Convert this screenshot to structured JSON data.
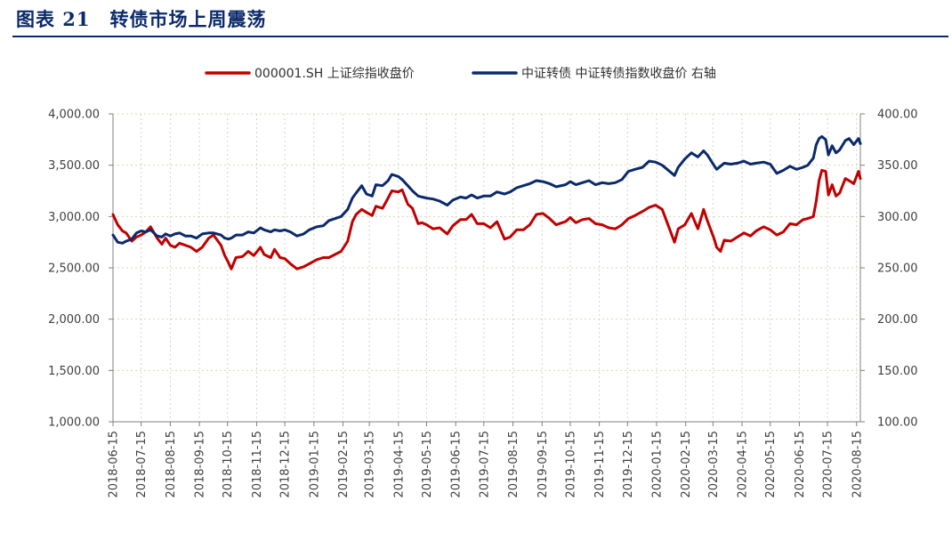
{
  "figure": {
    "label": "图表 21",
    "title": "转债市场上周震荡"
  },
  "colors": {
    "left_series": "#c00000",
    "right_series": "#0b2a6b",
    "title": "#0b2a6b",
    "grid": "#d9d4bf"
  },
  "chart_data": {
    "type": "line",
    "title": "转债市场上周震荡",
    "x_type": "date",
    "x_range": [
      "2018-06-15",
      "2020-08-19"
    ],
    "x_ticks": [
      "2018-06-15",
      "2018-07-15",
      "2018-08-15",
      "2018-09-15",
      "2018-10-15",
      "2018-11-15",
      "2018-12-15",
      "2019-01-15",
      "2019-02-15",
      "2019-03-15",
      "2019-04-15",
      "2019-05-15",
      "2019-06-15",
      "2019-07-15",
      "2019-08-15",
      "2019-09-15",
      "2019-10-15",
      "2019-11-15",
      "2019-12-15",
      "2020-01-15",
      "2020-02-15",
      "2020-03-15",
      "2020-04-15",
      "2020-05-15",
      "2020-06-15",
      "2020-07-15",
      "2020-08-15"
    ],
    "y_left": {
      "min": 1000,
      "max": 4000,
      "step": 500,
      "ticks": [
        "1,000.00",
        "1,500.00",
        "2,000.00",
        "2,500.00",
        "3,000.00",
        "3,500.00",
        "4,000.00"
      ]
    },
    "y_right": {
      "min": 100,
      "max": 400,
      "step": 50,
      "ticks": [
        "100.00",
        "150.00",
        "200.00",
        "250.00",
        "300.00",
        "350.00",
        "400.00"
      ]
    },
    "grid": true,
    "legend_position": "top-center",
    "series": [
      {
        "name": "000001.SH 上证综指收盘价",
        "axis": "left",
        "points": [
          [
            "2018-06-15",
            3020
          ],
          [
            "2018-06-20",
            2920
          ],
          [
            "2018-06-25",
            2860
          ],
          [
            "2018-06-29",
            2840
          ],
          [
            "2018-07-05",
            2760
          ],
          [
            "2018-07-10",
            2800
          ],
          [
            "2018-07-15",
            2820
          ],
          [
            "2018-07-20",
            2850
          ],
          [
            "2018-07-25",
            2900
          ],
          [
            "2018-08-01",
            2790
          ],
          [
            "2018-08-06",
            2730
          ],
          [
            "2018-08-10",
            2790
          ],
          [
            "2018-08-15",
            2720
          ],
          [
            "2018-08-20",
            2700
          ],
          [
            "2018-08-25",
            2740
          ],
          [
            "2018-08-31",
            2720
          ],
          [
            "2018-09-06",
            2700
          ],
          [
            "2018-09-12",
            2660
          ],
          [
            "2018-09-18",
            2700
          ],
          [
            "2018-09-25",
            2790
          ],
          [
            "2018-09-30",
            2820
          ],
          [
            "2018-10-08",
            2720
          ],
          [
            "2018-10-12",
            2620
          ],
          [
            "2018-10-16",
            2550
          ],
          [
            "2018-10-19",
            2490
          ],
          [
            "2018-10-24",
            2600
          ],
          [
            "2018-10-31",
            2610
          ],
          [
            "2018-11-06",
            2660
          ],
          [
            "2018-11-12",
            2620
          ],
          [
            "2018-11-19",
            2700
          ],
          [
            "2018-11-23",
            2630
          ],
          [
            "2018-11-30",
            2600
          ],
          [
            "2018-12-04",
            2680
          ],
          [
            "2018-12-10",
            2600
          ],
          [
            "2018-12-15",
            2590
          ],
          [
            "2018-12-21",
            2540
          ],
          [
            "2018-12-28",
            2490
          ],
          [
            "2019-01-04",
            2510
          ],
          [
            "2019-01-10",
            2540
          ],
          [
            "2019-01-18",
            2580
          ],
          [
            "2019-01-25",
            2600
          ],
          [
            "2019-01-31",
            2600
          ],
          [
            "2019-02-13",
            2660
          ],
          [
            "2019-02-20",
            2760
          ],
          [
            "2019-02-25",
            2950
          ],
          [
            "2019-03-01",
            3020
          ],
          [
            "2019-03-07",
            3070
          ],
          [
            "2019-03-12",
            3040
          ],
          [
            "2019-03-18",
            3010
          ],
          [
            "2019-03-22",
            3100
          ],
          [
            "2019-03-29",
            3080
          ],
          [
            "2019-04-04",
            3180
          ],
          [
            "2019-04-08",
            3250
          ],
          [
            "2019-04-15",
            3240
          ],
          [
            "2019-04-19",
            3260
          ],
          [
            "2019-04-25",
            3120
          ],
          [
            "2019-04-30",
            3080
          ],
          [
            "2019-05-06",
            2930
          ],
          [
            "2019-05-10",
            2940
          ],
          [
            "2019-05-15",
            2920
          ],
          [
            "2019-05-22",
            2880
          ],
          [
            "2019-05-29",
            2890
          ],
          [
            "2019-06-06",
            2830
          ],
          [
            "2019-06-12",
            2910
          ],
          [
            "2019-06-20",
            2970
          ],
          [
            "2019-06-26",
            2970
          ],
          [
            "2019-07-02",
            3020
          ],
          [
            "2019-07-08",
            2930
          ],
          [
            "2019-07-15",
            2930
          ],
          [
            "2019-07-22",
            2890
          ],
          [
            "2019-07-29",
            2950
          ],
          [
            "2019-08-06",
            2780
          ],
          [
            "2019-08-12",
            2800
          ],
          [
            "2019-08-19",
            2870
          ],
          [
            "2019-08-26",
            2870
          ],
          [
            "2019-09-02",
            2920
          ],
          [
            "2019-09-09",
            3020
          ],
          [
            "2019-09-16",
            3030
          ],
          [
            "2019-09-23",
            2980
          ],
          [
            "2019-09-30",
            2920
          ],
          [
            "2019-10-10",
            2950
          ],
          [
            "2019-10-15",
            2990
          ],
          [
            "2019-10-21",
            2940
          ],
          [
            "2019-10-28",
            2970
          ],
          [
            "2019-11-04",
            2980
          ],
          [
            "2019-11-11",
            2930
          ],
          [
            "2019-11-18",
            2920
          ],
          [
            "2019-11-25",
            2890
          ],
          [
            "2019-12-02",
            2880
          ],
          [
            "2019-12-09",
            2920
          ],
          [
            "2019-12-16",
            2980
          ],
          [
            "2019-12-23",
            3010
          ],
          [
            "2019-12-31",
            3050
          ],
          [
            "2020-01-07",
            3090
          ],
          [
            "2020-01-14",
            3110
          ],
          [
            "2020-01-21",
            3070
          ],
          [
            "2020-02-03",
            2750
          ],
          [
            "2020-02-07",
            2880
          ],
          [
            "2020-02-14",
            2920
          ],
          [
            "2020-02-21",
            3030
          ],
          [
            "2020-02-28",
            2880
          ],
          [
            "2020-03-05",
            3070
          ],
          [
            "2020-03-09",
            2960
          ],
          [
            "2020-03-16",
            2790
          ],
          [
            "2020-03-19",
            2700
          ],
          [
            "2020-03-23",
            2660
          ],
          [
            "2020-03-27",
            2770
          ],
          [
            "2020-04-03",
            2760
          ],
          [
            "2020-04-10",
            2800
          ],
          [
            "2020-04-17",
            2840
          ],
          [
            "2020-04-24",
            2810
          ],
          [
            "2020-04-30",
            2860
          ],
          [
            "2020-05-08",
            2900
          ],
          [
            "2020-05-15",
            2870
          ],
          [
            "2020-05-22",
            2820
          ],
          [
            "2020-05-29",
            2850
          ],
          [
            "2020-06-05",
            2930
          ],
          [
            "2020-06-12",
            2920
          ],
          [
            "2020-06-19",
            2970
          ],
          [
            "2020-06-24",
            2980
          ],
          [
            "2020-06-30",
            3000
          ],
          [
            "2020-07-03",
            3150
          ],
          [
            "2020-07-06",
            3350
          ],
          [
            "2020-07-09",
            3450
          ],
          [
            "2020-07-13",
            3440
          ],
          [
            "2020-07-16",
            3210
          ],
          [
            "2020-07-20",
            3310
          ],
          [
            "2020-07-24",
            3200
          ],
          [
            "2020-07-28",
            3230
          ],
          [
            "2020-08-03",
            3370
          ],
          [
            "2020-08-07",
            3350
          ],
          [
            "2020-08-12",
            3320
          ],
          [
            "2020-08-17",
            3440
          ],
          [
            "2020-08-19",
            3370
          ]
        ]
      },
      {
        "name": "中证转债 中证转债指数收盘价 右轴",
        "axis": "right",
        "points": [
          [
            "2018-06-15",
            282
          ],
          [
            "2018-06-20",
            275
          ],
          [
            "2018-06-25",
            274
          ],
          [
            "2018-06-29",
            276
          ],
          [
            "2018-07-05",
            278
          ],
          [
            "2018-07-10",
            284
          ],
          [
            "2018-07-15",
            286
          ],
          [
            "2018-07-20",
            285
          ],
          [
            "2018-07-25",
            287
          ],
          [
            "2018-08-01",
            281
          ],
          [
            "2018-08-06",
            280
          ],
          [
            "2018-08-10",
            283
          ],
          [
            "2018-08-15",
            281
          ],
          [
            "2018-08-20",
            283
          ],
          [
            "2018-08-25",
            284
          ],
          [
            "2018-08-31",
            281
          ],
          [
            "2018-09-06",
            281
          ],
          [
            "2018-09-12",
            279
          ],
          [
            "2018-09-18",
            283
          ],
          [
            "2018-09-25",
            284
          ],
          [
            "2018-09-30",
            284
          ],
          [
            "2018-10-08",
            282
          ],
          [
            "2018-10-12",
            279
          ],
          [
            "2018-10-16",
            278
          ],
          [
            "2018-10-19",
            279
          ],
          [
            "2018-10-24",
            282
          ],
          [
            "2018-10-31",
            282
          ],
          [
            "2018-11-06",
            285
          ],
          [
            "2018-11-12",
            284
          ],
          [
            "2018-11-19",
            289
          ],
          [
            "2018-11-23",
            287
          ],
          [
            "2018-11-30",
            285
          ],
          [
            "2018-12-04",
            287
          ],
          [
            "2018-12-10",
            286
          ],
          [
            "2018-12-15",
            287
          ],
          [
            "2018-12-21",
            285
          ],
          [
            "2018-12-28",
            281
          ],
          [
            "2019-01-04",
            283
          ],
          [
            "2019-01-10",
            287
          ],
          [
            "2019-01-18",
            290
          ],
          [
            "2019-01-25",
            291
          ],
          [
            "2019-01-31",
            296
          ],
          [
            "2019-02-13",
            300
          ],
          [
            "2019-02-20",
            307
          ],
          [
            "2019-02-25",
            318
          ],
          [
            "2019-03-01",
            323
          ],
          [
            "2019-03-07",
            330
          ],
          [
            "2019-03-12",
            322
          ],
          [
            "2019-03-18",
            320
          ],
          [
            "2019-03-22",
            331
          ],
          [
            "2019-03-29",
            330
          ],
          [
            "2019-04-04",
            335
          ],
          [
            "2019-04-08",
            341
          ],
          [
            "2019-04-15",
            339
          ],
          [
            "2019-04-19",
            336
          ],
          [
            "2019-04-25",
            330
          ],
          [
            "2019-04-30",
            325
          ],
          [
            "2019-05-06",
            320
          ],
          [
            "2019-05-10",
            319
          ],
          [
            "2019-05-15",
            318
          ],
          [
            "2019-05-22",
            317
          ],
          [
            "2019-05-29",
            315
          ],
          [
            "2019-06-06",
            311
          ],
          [
            "2019-06-12",
            316
          ],
          [
            "2019-06-20",
            319
          ],
          [
            "2019-06-26",
            318
          ],
          [
            "2019-07-02",
            321
          ],
          [
            "2019-07-08",
            318
          ],
          [
            "2019-07-15",
            320
          ],
          [
            "2019-07-22",
            320
          ],
          [
            "2019-07-29",
            324
          ],
          [
            "2019-08-06",
            322
          ],
          [
            "2019-08-12",
            324
          ],
          [
            "2019-08-19",
            328
          ],
          [
            "2019-08-26",
            330
          ],
          [
            "2019-09-02",
            332
          ],
          [
            "2019-09-09",
            335
          ],
          [
            "2019-09-16",
            334
          ],
          [
            "2019-09-23",
            332
          ],
          [
            "2019-09-30",
            329
          ],
          [
            "2019-10-10",
            331
          ],
          [
            "2019-10-15",
            334
          ],
          [
            "2019-10-21",
            331
          ],
          [
            "2019-10-28",
            333
          ],
          [
            "2019-11-04",
            335
          ],
          [
            "2019-11-11",
            331
          ],
          [
            "2019-11-18",
            333
          ],
          [
            "2019-11-25",
            332
          ],
          [
            "2019-12-02",
            333
          ],
          [
            "2019-12-09",
            336
          ],
          [
            "2019-12-16",
            344
          ],
          [
            "2019-12-23",
            346
          ],
          [
            "2019-12-31",
            348
          ],
          [
            "2020-01-07",
            354
          ],
          [
            "2020-01-14",
            353
          ],
          [
            "2020-01-21",
            350
          ],
          [
            "2020-02-03",
            340
          ],
          [
            "2020-02-07",
            348
          ],
          [
            "2020-02-14",
            356
          ],
          [
            "2020-02-21",
            362
          ],
          [
            "2020-02-28",
            358
          ],
          [
            "2020-03-05",
            364
          ],
          [
            "2020-03-09",
            360
          ],
          [
            "2020-03-16",
            350
          ],
          [
            "2020-03-19",
            346
          ],
          [
            "2020-03-23",
            349
          ],
          [
            "2020-03-27",
            352
          ],
          [
            "2020-04-03",
            351
          ],
          [
            "2020-04-10",
            352
          ],
          [
            "2020-04-17",
            354
          ],
          [
            "2020-04-24",
            351
          ],
          [
            "2020-04-30",
            352
          ],
          [
            "2020-05-08",
            353
          ],
          [
            "2020-05-15",
            351
          ],
          [
            "2020-05-22",
            342
          ],
          [
            "2020-05-29",
            345
          ],
          [
            "2020-06-05",
            349
          ],
          [
            "2020-06-12",
            346
          ],
          [
            "2020-06-19",
            348
          ],
          [
            "2020-06-24",
            350
          ],
          [
            "2020-06-30",
            357
          ],
          [
            "2020-07-03",
            370
          ],
          [
            "2020-07-06",
            376
          ],
          [
            "2020-07-09",
            378
          ],
          [
            "2020-07-13",
            375
          ],
          [
            "2020-07-16",
            360
          ],
          [
            "2020-07-20",
            369
          ],
          [
            "2020-07-24",
            362
          ],
          [
            "2020-07-28",
            365
          ],
          [
            "2020-08-03",
            374
          ],
          [
            "2020-08-07",
            376
          ],
          [
            "2020-08-12",
            370
          ],
          [
            "2020-08-17",
            376
          ],
          [
            "2020-08-19",
            371
          ]
        ]
      }
    ]
  }
}
